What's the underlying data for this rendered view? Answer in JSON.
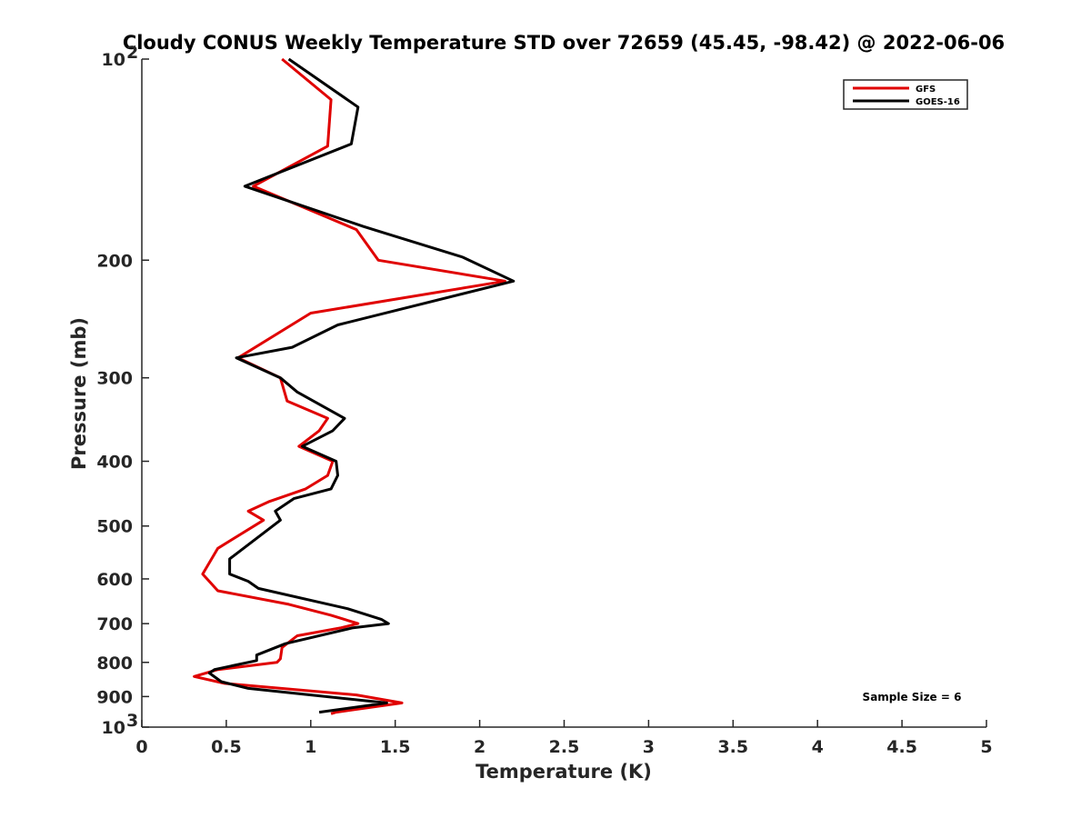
{
  "chart_data": {
    "type": "line",
    "title": "Cloudy CONUS Weekly Temperature STD over 72659 (45.45, -98.42) @ 2022-06-06",
    "xlabel": "Temperature (K)",
    "ylabel": "Pressure (mb)",
    "xlim": [
      0,
      5
    ],
    "ylim": [
      100,
      1000
    ],
    "y_scale": "log",
    "y_reversed": true,
    "grid": false,
    "legend_position": "top-right",
    "x_ticks": [
      "0",
      "0.5",
      "1",
      "1.5",
      "2",
      "2.5",
      "3",
      "3.5",
      "4",
      "4.5",
      "5"
    ],
    "y_ticks": [
      {
        "value": 100,
        "label": "10",
        "exp": "2"
      },
      {
        "value": 200,
        "label": "200",
        "exp": ""
      },
      {
        "value": 300,
        "label": "300",
        "exp": ""
      },
      {
        "value": 400,
        "label": "400",
        "exp": ""
      },
      {
        "value": 500,
        "label": "500",
        "exp": ""
      },
      {
        "value": 600,
        "label": "600",
        "exp": ""
      },
      {
        "value": 700,
        "label": "700",
        "exp": ""
      },
      {
        "value": 800,
        "label": "800",
        "exp": ""
      },
      {
        "value": 900,
        "label": "900",
        "exp": ""
      },
      {
        "value": 1000,
        "label": "10",
        "exp": "3"
      }
    ],
    "annotation": "Sample Size = 6",
    "series": [
      {
        "name": "GFS",
        "color": "#e00000",
        "points": [
          [
            0.83,
            100
          ],
          [
            1.12,
            115
          ],
          [
            1.1,
            135
          ],
          [
            0.66,
            155
          ],
          [
            1.27,
            180
          ],
          [
            1.4,
            200
          ],
          [
            2.15,
            215
          ],
          [
            1.0,
            240
          ],
          [
            0.57,
            280
          ],
          [
            0.82,
            300
          ],
          [
            0.86,
            325
          ],
          [
            1.1,
            345
          ],
          [
            1.05,
            360
          ],
          [
            0.93,
            380
          ],
          [
            1.13,
            400
          ],
          [
            1.1,
            420
          ],
          [
            0.97,
            440
          ],
          [
            0.75,
            460
          ],
          [
            0.63,
            475
          ],
          [
            0.72,
            490
          ],
          [
            0.45,
            540
          ],
          [
            0.36,
            590
          ],
          [
            0.45,
            625
          ],
          [
            0.87,
            655
          ],
          [
            1.12,
            680
          ],
          [
            1.28,
            700
          ],
          [
            1.18,
            710
          ],
          [
            0.92,
            730
          ],
          [
            0.83,
            760
          ],
          [
            0.82,
            790
          ],
          [
            0.8,
            800
          ],
          [
            0.45,
            820
          ],
          [
            0.31,
            840
          ],
          [
            0.49,
            860
          ],
          [
            1.27,
            895
          ],
          [
            1.54,
            920
          ],
          [
            1.15,
            950
          ],
          [
            1.12,
            955
          ]
        ]
      },
      {
        "name": "GOES-16",
        "color": "#000000",
        "points": [
          [
            0.87,
            100
          ],
          [
            1.28,
            118
          ],
          [
            1.24,
            134
          ],
          [
            0.61,
            155
          ],
          [
            1.31,
            178
          ],
          [
            1.9,
            198
          ],
          [
            2.2,
            215
          ],
          [
            1.16,
            250
          ],
          [
            0.89,
            270
          ],
          [
            0.56,
            280
          ],
          [
            0.82,
            300
          ],
          [
            0.92,
            315
          ],
          [
            1.2,
            345
          ],
          [
            1.13,
            360
          ],
          [
            0.95,
            380
          ],
          [
            1.15,
            400
          ],
          [
            1.16,
            420
          ],
          [
            1.12,
            440
          ],
          [
            0.9,
            455
          ],
          [
            0.79,
            475
          ],
          [
            0.82,
            490
          ],
          [
            0.52,
            560
          ],
          [
            0.52,
            590
          ],
          [
            0.63,
            605
          ],
          [
            0.69,
            620
          ],
          [
            1.22,
            665
          ],
          [
            1.42,
            690
          ],
          [
            1.46,
            700
          ],
          [
            1.25,
            710
          ],
          [
            0.85,
            750
          ],
          [
            0.68,
            780
          ],
          [
            0.68,
            795
          ],
          [
            0.43,
            820
          ],
          [
            0.4,
            830
          ],
          [
            0.47,
            855
          ],
          [
            0.63,
            875
          ],
          [
            1.45,
            920
          ],
          [
            1.05,
            950
          ]
        ]
      }
    ]
  }
}
